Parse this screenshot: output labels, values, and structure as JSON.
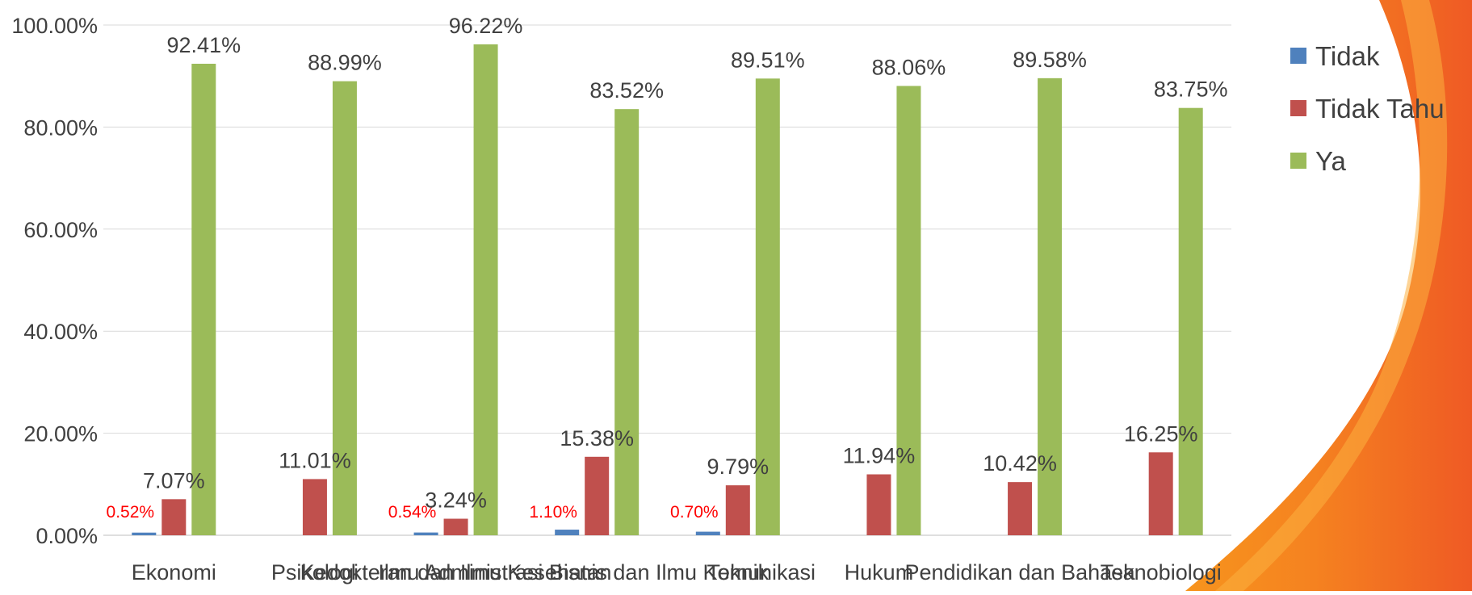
{
  "chart_data": {
    "type": "bar",
    "categories": [
      "Ekonomi",
      "Psikologi",
      "Kedokteran dan Ilmu Kesehatan",
      "Ilmu Administrasi Bisnis dan Ilmu Komunikasi",
      "Teknik",
      "Hukum",
      "Pendidikan dan Bahasa",
      "Teknobiologi"
    ],
    "series": [
      {
        "name": "Tidak",
        "color": "#4F81BD",
        "values": [
          0.52,
          0,
          0.54,
          1.1,
          0.7,
          0,
          0,
          0
        ],
        "labels": [
          "0.52%",
          "",
          "0.54%",
          "1.10%",
          "0.70%",
          "",
          "",
          ""
        ],
        "label_color": "#FF0000"
      },
      {
        "name": "Tidak Tahu",
        "color": "#C0504D",
        "values": [
          7.07,
          11.01,
          3.24,
          15.38,
          9.79,
          11.94,
          10.42,
          16.25
        ],
        "labels": [
          "7.07%",
          "11.01%",
          "3.24%",
          "15.38%",
          "9.79%",
          "11.94%",
          "10.42%",
          "16.25%"
        ],
        "label_color": "#404040"
      },
      {
        "name": "Ya",
        "color": "#9BBB59",
        "values": [
          92.41,
          88.99,
          96.22,
          83.52,
          89.51,
          88.06,
          89.58,
          83.75
        ],
        "labels": [
          "92.41%",
          "88.99%",
          "96.22%",
          "83.52%",
          "89.51%",
          "88.06%",
          "89.58%",
          "83.75%"
        ],
        "label_color": "#404040"
      }
    ],
    "yticks": [
      "0.00%",
      "20.00%",
      "40.00%",
      "60.00%",
      "80.00%",
      "100.00%"
    ],
    "ylim": [
      0,
      100
    ],
    "grid": true,
    "legend": "right",
    "title": "",
    "xlabel": "",
    "ylabel": ""
  },
  "decoration": {
    "swoosh_colors": [
      "#F7931E",
      "#F26522"
    ]
  }
}
